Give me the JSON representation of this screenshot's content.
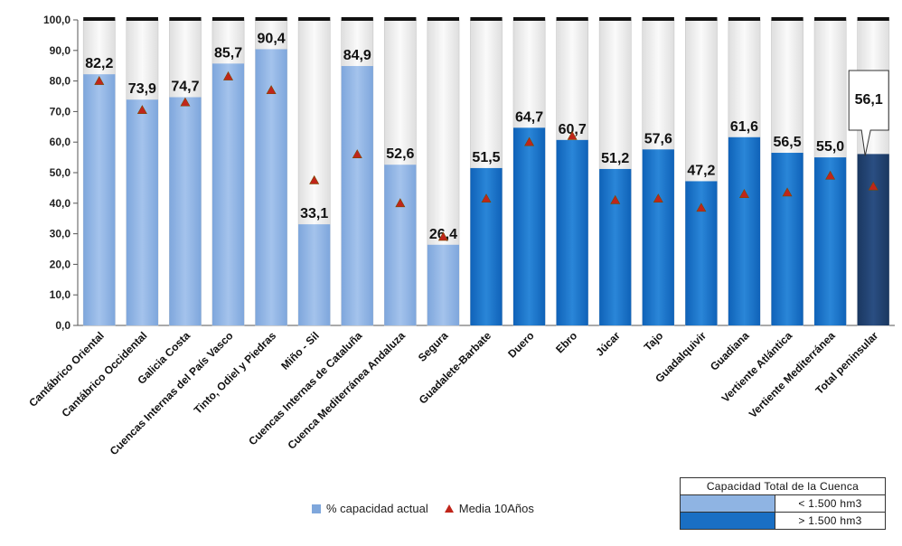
{
  "chart_data": {
    "type": "bar",
    "title": "",
    "xlabel": "",
    "ylabel": "",
    "ylim": [
      0,
      100
    ],
    "yticks": [
      "0,0",
      "10,0",
      "20,0",
      "30,0",
      "40,0",
      "50,0",
      "60,0",
      "70,0",
      "80,0",
      "90,0",
      "100,0"
    ],
    "categories": [
      "Cantábrico Oriental",
      "Cantábrico Occidental",
      "Galicia Costa",
      "Cuencas Internas del País Vasco",
      "Tinto, Odiel y Piedras",
      "Miño - Sil",
      "Cuencas Internas de Cataluña",
      "Cuenca Mediterránea Andaluza",
      "Segura",
      "Guadalete-Barbate",
      "Duero",
      "Ebro",
      "Júcar",
      "Tajo",
      "Guadalquivir",
      "Guadiana",
      "Vertiente Atlántica",
      "Vertiente Mediterránea",
      "Total peninsular"
    ],
    "series": [
      {
        "name": "% capacidad actual",
        "values": [
          82.2,
          73.9,
          74.7,
          85.7,
          90.4,
          33.1,
          84.9,
          52.6,
          26.4,
          51.5,
          64.7,
          60.7,
          51.2,
          57.6,
          47.2,
          61.6,
          56.5,
          55.0,
          56.1
        ],
        "labels": [
          "82,2",
          "73,9",
          "74,7",
          "85,7",
          "90,4",
          "33,1",
          "84,9",
          "52,6",
          "26,4",
          "51,5",
          "64,7",
          "60,7",
          "51,2",
          "57,6",
          "47,2",
          "61,6",
          "56,5",
          "55,0",
          "56,1"
        ]
      },
      {
        "name": "Media 10Años",
        "values": [
          80,
          70.5,
          73,
          81.5,
          77,
          47.5,
          56,
          40,
          29,
          41.5,
          60,
          62,
          41,
          41.5,
          38.5,
          43,
          43.5,
          49,
          45.5
        ]
      }
    ],
    "capacity_group": [
      "small",
      "small",
      "small",
      "small",
      "small",
      "small",
      "small",
      "small",
      "small",
      "large",
      "large",
      "large",
      "large",
      "large",
      "large",
      "large",
      "large",
      "large",
      "total"
    ],
    "colors": {
      "small": "#8fb4e3",
      "large": "#1a6fc4",
      "total": "#1f3f6b",
      "empty": "#ececec",
      "marker": "#c0251a"
    },
    "legend_position": "bottom"
  },
  "legend": {
    "bar_label": "% capacidad actual",
    "marker_label": "Media 10Años"
  },
  "capacity_table": {
    "title": "Capacidad Total de la Cuenca",
    "rows": [
      {
        "label": "< 1.500 hm3",
        "color": "#8fb4e3"
      },
      {
        "label": "> 1.500 hm3",
        "color": "#1a6fc4"
      }
    ]
  }
}
